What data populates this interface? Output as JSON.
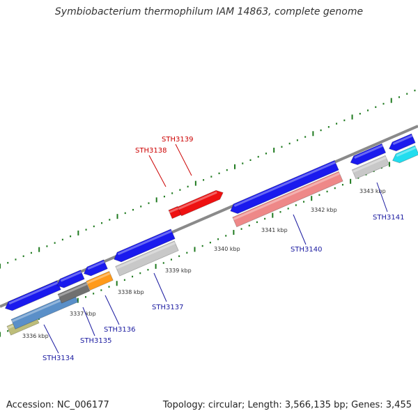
{
  "title": "Symbiobacterium thermophilum IAM 14863, complete genome",
  "footer": {
    "accession": "Accession: NC_006177",
    "summary": "Topology: circular; Length: 3,566,135 bp; Genes: 3,455"
  },
  "colors": {
    "backbone": "#8a8a8a",
    "tick": "#1f7a1f",
    "label_blue": "#1a1aa0",
    "label_red": "#cc0000",
    "gene_blue": "#1a1aee",
    "gene_red": "#ee1111",
    "gene_pink": "#ee8888",
    "gene_gray": "#c8c8c8",
    "gene_darkgray": "#707070",
    "gene_steel": "#5a8fc8",
    "gene_orange": "#ff9a1a",
    "gene_cyan": "#22ddee",
    "gene_olive": "#bdbd7a"
  },
  "scale_labels": [
    "3336 kbp",
    "3337 kbp",
    "3338 kbp",
    "3339 kbp",
    "3340 kbp",
    "3341 kbp",
    "3342 kbp",
    "3343 kbp"
  ],
  "gene_labels": [
    {
      "name": "STH3134",
      "strand": "minus"
    },
    {
      "name": "STH3135",
      "strand": "minus"
    },
    {
      "name": "STH3136",
      "strand": "minus"
    },
    {
      "name": "STH3137",
      "strand": "minus"
    },
    {
      "name": "STH3138",
      "strand": "plus"
    },
    {
      "name": "STH3139",
      "strand": "plus"
    },
    {
      "name": "STH3140",
      "strand": "minus"
    },
    {
      "name": "STH3141",
      "strand": "minus"
    }
  ]
}
